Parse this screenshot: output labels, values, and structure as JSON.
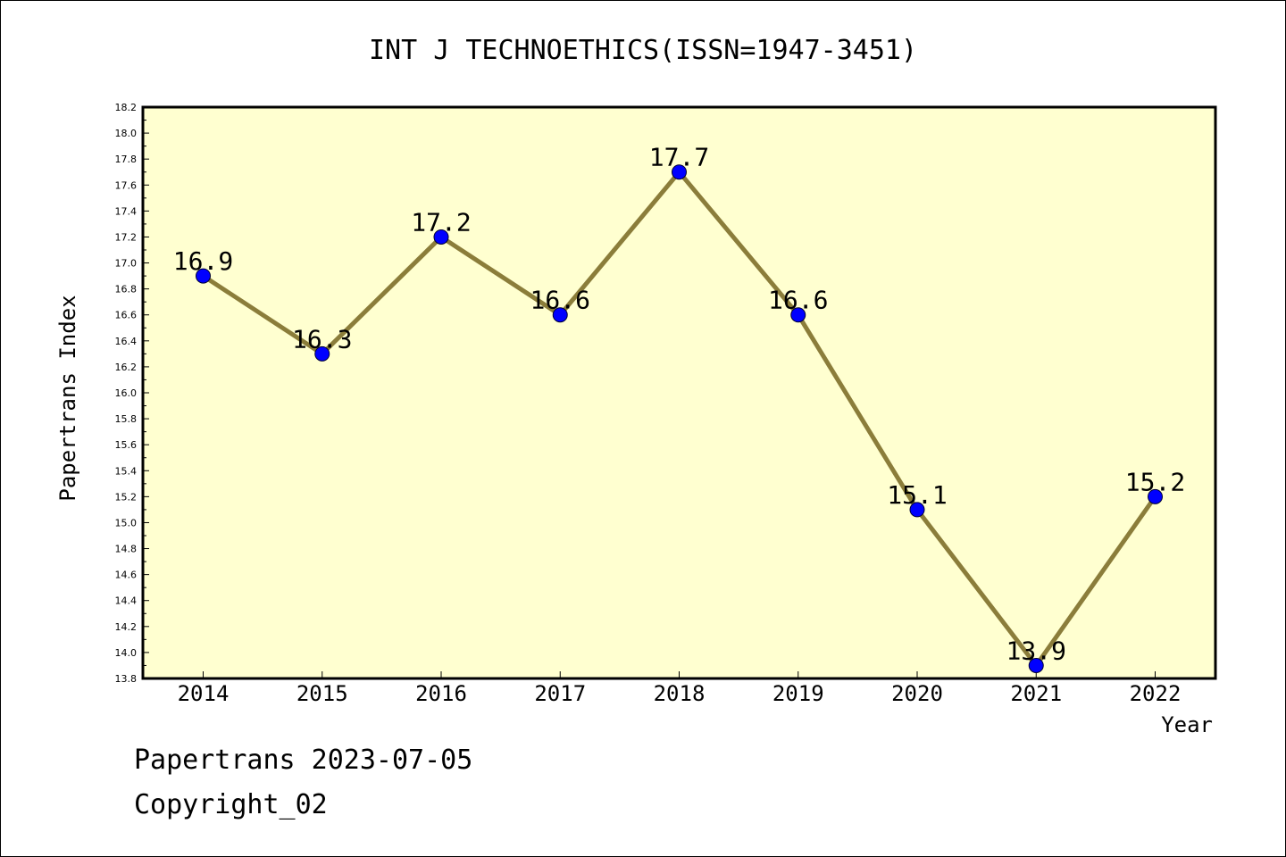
{
  "chart_data": {
    "type": "line",
    "title": "INT J TECHNOETHICS(ISSN=1947-3451)",
    "xlabel": "Year",
    "ylabel": "Papertrans Index",
    "x": [
      "2014",
      "2015",
      "2016",
      "2017",
      "2018",
      "2019",
      "2020",
      "2021",
      "2022"
    ],
    "series": [
      {
        "values": [
          16.9,
          16.3,
          17.2,
          16.6,
          17.7,
          16.6,
          15.1,
          13.9,
          15.2
        ],
        "data_labels": [
          "16.9",
          "16.3",
          "17.2",
          "16.6",
          "17.7",
          "16.6",
          "15.1",
          "13.9",
          "15.2"
        ],
        "line_color": "#8b7d3a",
        "marker_color": "#0000ff"
      }
    ],
    "ylim": [
      13.8,
      18.2
    ],
    "yticks": [
      "13.8",
      "14.0",
      "14.2",
      "14.4",
      "14.6",
      "14.8",
      "15.0",
      "15.2",
      "15.4",
      "15.6",
      "15.8",
      "16.0",
      "16.2",
      "16.4",
      "16.6",
      "16.8",
      "17.0",
      "17.2",
      "17.4",
      "17.6",
      "17.8",
      "18.0",
      "18.2"
    ],
    "plot_background": "#ffffd0",
    "grid": false,
    "legend": "none"
  },
  "footer": {
    "line1": "Papertrans 2023-07-05",
    "line2": "Copyright_02"
  }
}
